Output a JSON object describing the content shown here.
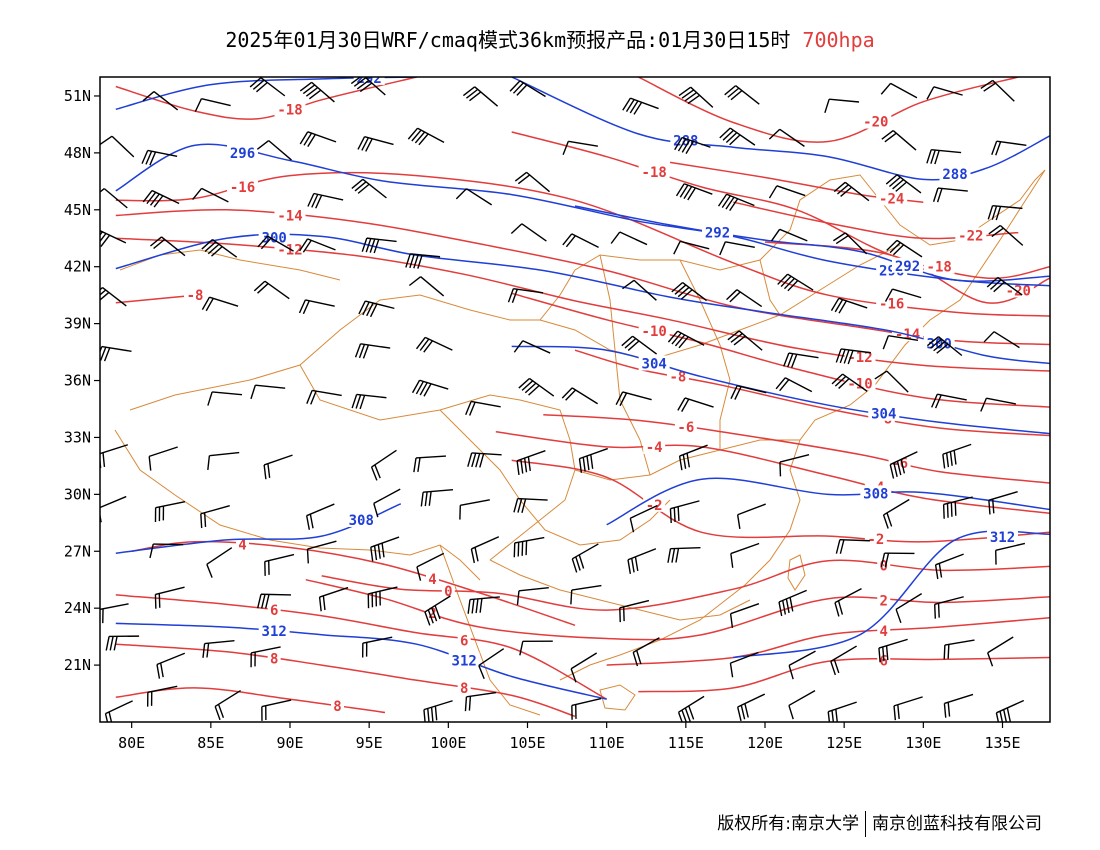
{
  "title": {
    "main": "2025年01月30日WRF/cmaq模式36km预报产品:01月30日15时",
    "level": "700hpa"
  },
  "colors": {
    "temperature": "#e23c3c",
    "height": "#1f3fd6",
    "border": "#d88a3a",
    "wind": "#000000"
  },
  "map": {
    "lon_range": [
      78,
      138
    ],
    "lat_range": [
      18,
      52
    ],
    "lon_ticks": [
      80,
      85,
      90,
      95,
      100,
      105,
      110,
      115,
      120,
      125,
      130,
      135
    ],
    "lat_ticks": [
      21,
      24,
      27,
      30,
      33,
      36,
      39,
      42,
      45,
      48,
      51
    ],
    "lon_labels": [
      "80E",
      "85E",
      "90E",
      "95E",
      "100E",
      "105E",
      "110E",
      "115E",
      "120E",
      "125E",
      "130E",
      "135E"
    ],
    "lat_labels": [
      "21N",
      "24N",
      "27N",
      "30N",
      "33N",
      "36N",
      "39N",
      "42N",
      "45N",
      "48N",
      "51N"
    ]
  },
  "temp_contours": [
    {
      "label": "-18",
      "points": [
        [
          79,
          51.5
        ],
        [
          84,
          50.2
        ],
        [
          88,
          49.8
        ],
        [
          92,
          50.8
        ],
        [
          98,
          52
        ]
      ]
    },
    {
      "label": "-16",
      "points": [
        [
          79,
          45.5
        ],
        [
          84,
          45.6
        ],
        [
          90,
          46.8
        ],
        [
          98,
          46.8
        ],
        [
          108,
          45.5
        ],
        [
          118,
          42.2
        ],
        [
          124,
          40.5
        ],
        [
          132,
          39.6
        ],
        [
          138,
          39.4
        ]
      ]
    },
    {
      "label": "-14",
      "points": [
        [
          79,
          44.7
        ],
        [
          86,
          45.0
        ],
        [
          94,
          44.4
        ],
        [
          102,
          43.2
        ],
        [
          110,
          41.8
        ],
        [
          118,
          39.9
        ],
        [
          126,
          38.8
        ],
        [
          132,
          38.1
        ],
        [
          138,
          37.9
        ]
      ]
    },
    {
      "label": "-12",
      "points": [
        [
          79,
          43.5
        ],
        [
          86,
          43.2
        ],
        [
          94,
          42.6
        ],
        [
          101,
          41.6
        ],
        [
          108,
          40.2
        ],
        [
          114,
          39.2
        ],
        [
          122,
          37.7
        ],
        [
          130,
          36.8
        ],
        [
          138,
          36.5
        ]
      ]
    },
    {
      "label": "-10",
      "points": [
        [
          104,
          40.6
        ],
        [
          110,
          39.2
        ],
        [
          116,
          38.0
        ],
        [
          122,
          36.6
        ],
        [
          130,
          35.1
        ],
        [
          138,
          34.6
        ]
      ]
    },
    {
      "label": "-8",
      "points": [
        [
          79,
          40.1
        ],
        [
          84,
          40.5
        ]
      ]
    },
    {
      "label": "-8",
      "points": [
        [
          108,
          37.6
        ],
        [
          112,
          36.6
        ],
        [
          117,
          35.8
        ],
        [
          124,
          34.5
        ],
        [
          131,
          33.5
        ],
        [
          138,
          33.1
        ]
      ]
    },
    {
      "label": "-6",
      "points": [
        [
          106,
          34.2
        ],
        [
          112,
          33.9
        ],
        [
          118,
          33.2
        ],
        [
          126,
          32.1
        ],
        [
          131,
          31.2
        ],
        [
          138,
          30.6
        ]
      ]
    },
    {
      "label": "-4",
      "points": [
        [
          103,
          33.3
        ],
        [
          110,
          32.5
        ],
        [
          116,
          32.5
        ],
        [
          124,
          31.0
        ],
        [
          130,
          29.8
        ],
        [
          138,
          29.0
        ]
      ]
    },
    {
      "label": "-2",
      "points": [
        [
          104,
          31.8
        ],
        [
          110,
          30.9
        ],
        [
          116,
          28.0
        ],
        [
          124,
          27.8
        ],
        [
          130,
          27.5
        ],
        [
          138,
          28.0
        ]
      ]
    },
    {
      "label": "0",
      "points": [
        [
          92,
          25.7
        ],
        [
          97,
          25.0
        ],
        [
          103,
          24.8
        ],
        [
          110,
          23.9
        ],
        [
          118,
          25.0
        ],
        [
          124,
          26.5
        ],
        [
          131,
          26.0
        ],
        [
          138,
          26.2
        ]
      ]
    },
    {
      "label": "2",
      "points": [
        [
          91,
          25.5
        ],
        [
          96,
          24.5
        ],
        [
          102,
          23.0
        ],
        [
          110,
          22.4
        ],
        [
          116,
          22.6
        ],
        [
          124,
          24.5
        ],
        [
          131,
          24.3
        ],
        [
          138,
          24.6
        ]
      ]
    },
    {
      "label": "4",
      "points": [
        [
          80,
          27.0
        ],
        [
          84,
          27.5
        ],
        [
          90,
          27.2
        ],
        [
          96,
          26.3
        ],
        [
          102,
          24.8
        ],
        [
          108,
          23.1
        ]
      ]
    },
    {
      "label": "4",
      "points": [
        [
          110,
          21.0
        ],
        [
          118,
          21.4
        ],
        [
          124,
          22.6
        ],
        [
          131,
          23.0
        ],
        [
          138,
          23.5
        ]
      ]
    },
    {
      "label": "6",
      "points": [
        [
          79,
          24.7
        ],
        [
          86,
          24.2
        ],
        [
          92,
          23.6
        ],
        [
          98,
          22.7
        ],
        [
          104,
          21.9
        ],
        [
          110,
          19.2
        ]
      ]
    },
    {
      "label": "6",
      "points": [
        [
          112,
          19.6
        ],
        [
          118,
          19.8
        ],
        [
          124,
          21.2
        ],
        [
          131,
          21.3
        ],
        [
          138,
          21.4
        ]
      ]
    },
    {
      "label": "8",
      "points": [
        [
          79,
          22.1
        ],
        [
          86,
          21.7
        ],
        [
          92,
          21.0
        ],
        [
          98,
          20.2
        ],
        [
          104,
          19.4
        ],
        [
          108,
          18.3
        ]
      ]
    },
    {
      "label": "8",
      "points": [
        [
          79,
          19.3
        ],
        [
          84,
          19.8
        ],
        [
          90,
          19.2
        ],
        [
          96,
          18.5
        ]
      ]
    },
    {
      "label": "-20",
      "points": [
        [
          112,
          52
        ],
        [
          118,
          49.6
        ],
        [
          124,
          48.6
        ],
        [
          130,
          50.7
        ],
        [
          136,
          52
        ]
      ]
    },
    {
      "label": "-22",
      "points": [
        [
          118,
          45.4
        ],
        [
          124,
          44.3
        ],
        [
          130,
          43.5
        ],
        [
          136,
          43.8
        ]
      ]
    },
    {
      "label": "-20",
      "points": [
        [
          120,
          43.3
        ],
        [
          128,
          42.6
        ],
        [
          134,
          40.1
        ],
        [
          138,
          41.4
        ]
      ]
    },
    {
      "label": "-24",
      "points": [
        [
          114,
          47.5
        ],
        [
          120,
          46.7
        ],
        [
          126,
          45.8
        ],
        [
          130,
          45.4
        ]
      ]
    },
    {
      "label": "-18",
      "points": [
        [
          104,
          49.1
        ],
        [
          110,
          47.8
        ],
        [
          116,
          46.2
        ],
        [
          122,
          45.0
        ],
        [
          128,
          42.6
        ],
        [
          134,
          41.4
        ],
        [
          138,
          42.0
        ]
      ]
    }
  ],
  "height_contours": [
    {
      "label": "292",
      "points": [
        [
          79,
          50.3
        ],
        [
          85,
          51.6
        ],
        [
          92,
          51.9
        ],
        [
          98,
          52
        ]
      ]
    },
    {
      "label": "296",
      "points": [
        [
          79,
          46.0
        ],
        [
          84,
          48.4
        ],
        [
          90,
          47.6
        ],
        [
          96,
          46.5
        ],
        [
          104,
          45.8
        ],
        [
          112,
          44.4
        ],
        [
          118,
          43.6
        ],
        [
          124,
          42.3
        ],
        [
          132,
          41.3
        ],
        [
          138,
          41.0
        ]
      ]
    },
    {
      "label": "300",
      "points": [
        [
          79,
          41.9
        ],
        [
          86,
          43.5
        ],
        [
          92,
          43.6
        ],
        [
          98,
          42.6
        ],
        [
          106,
          41.8
        ],
        [
          114,
          40.4
        ],
        [
          120,
          39.6
        ],
        [
          128,
          38.6
        ],
        [
          134,
          37.3
        ],
        [
          138,
          36.9
        ]
      ]
    },
    {
      "label": "304",
      "points": [
        [
          104,
          37.8
        ],
        [
          110,
          37.6
        ],
        [
          116,
          36.2
        ],
        [
          124,
          34.7
        ],
        [
          131,
          33.8
        ],
        [
          138,
          33.2
        ]
      ]
    },
    {
      "label": "308",
      "points": [
        [
          79,
          26.9
        ],
        [
          86,
          27.6
        ],
        [
          92,
          27.8
        ],
        [
          97,
          29.5
        ]
      ]
    },
    {
      "label": "308",
      "points": [
        [
          110,
          28.4
        ],
        [
          116,
          30.8
        ],
        [
          124,
          30.0
        ],
        [
          130,
          30.1
        ],
        [
          138,
          29.2
        ]
      ]
    },
    {
      "label": "312",
      "points": [
        [
          79,
          23.2
        ],
        [
          86,
          23.0
        ],
        [
          92,
          22.6
        ],
        [
          98,
          22.1
        ],
        [
          104,
          20.4
        ],
        [
          110,
          19.2
        ]
      ]
    },
    {
      "label": "312",
      "points": [
        [
          118,
          21.4
        ],
        [
          126,
          22.6
        ],
        [
          132,
          27.6
        ],
        [
          138,
          27.9
        ]
      ]
    },
    {
      "label": "288",
      "points": [
        [
          104,
          52
        ],
        [
          112,
          49.0
        ],
        [
          118,
          48.3
        ],
        [
          124,
          47.8
        ],
        [
          130,
          46.6
        ],
        [
          134,
          47.2
        ],
        [
          138,
          48.9
        ]
      ]
    },
    {
      "label": "292",
      "points": [
        [
          108,
          45.2
        ],
        [
          114,
          44.2
        ],
        [
          120,
          43.4
        ],
        [
          126,
          42.8
        ],
        [
          132,
          41.3
        ],
        [
          138,
          41.5
        ]
      ]
    }
  ],
  "footer": {
    "left": "版权所有:南京大学",
    "right": "南京创蓝科技有限公司"
  }
}
